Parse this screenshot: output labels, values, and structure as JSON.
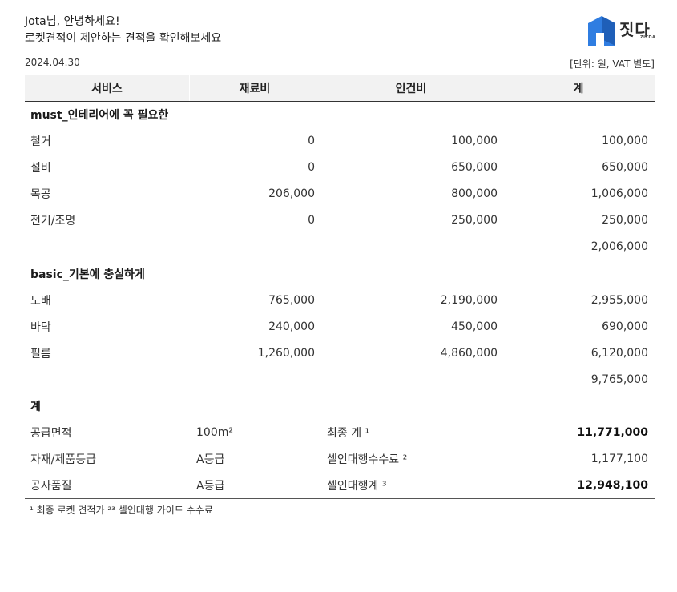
{
  "greeting": {
    "line1": "Jota님, 안녕하세요!",
    "line2": "로켓견적이 제안하는 견적을 확인해보세요"
  },
  "brand": {
    "logo_text": "짓다",
    "logo_sub": "ZITDA",
    "logo_color": "#2f7de1"
  },
  "meta": {
    "date": "2024.04.30",
    "unit_note": "[단위: 원, VAT 별도]"
  },
  "table": {
    "headers": [
      "서비스",
      "재료비",
      "인건비",
      "계"
    ],
    "sections": [
      {
        "title": "must_인테리어에 꼭 필요한",
        "rows": [
          {
            "name": "철거",
            "material": "0",
            "labor": "100,000",
            "total": "100,000"
          },
          {
            "name": "설비",
            "material": "0",
            "labor": "650,000",
            "total": "650,000"
          },
          {
            "name": "목공",
            "material": "206,000",
            "labor": "800,000",
            "total": "1,006,000"
          },
          {
            "name": "전기/조명",
            "material": "0",
            "labor": "250,000",
            "total": "250,000"
          }
        ],
        "subtotal": "2,006,000"
      },
      {
        "title": "basic_기본에 충실하게",
        "rows": [
          {
            "name": "도배",
            "material": "765,000",
            "labor": "2,190,000",
            "total": "2,955,000"
          },
          {
            "name": "바닥",
            "material": "240,000",
            "labor": "450,000",
            "total": "690,000"
          },
          {
            "name": "필름",
            "material": "1,260,000",
            "labor": "4,860,000",
            "total": "6,120,000"
          }
        ],
        "subtotal": "9,765,000"
      }
    ]
  },
  "summary": {
    "title": "계",
    "rows": [
      {
        "label": "공급면적",
        "value": "100m²",
        "label2": "최종 계 ¹",
        "amount": "11,771,000",
        "bold": true
      },
      {
        "label": "자재/제품등급",
        "value": "A등급",
        "label2": "셀인대행수수료 ²",
        "amount": "1,177,100",
        "bold": false
      },
      {
        "label": "공사품질",
        "value": "A등급",
        "label2": "셀인대행계 ³",
        "amount": "12,948,100",
        "bold": true
      }
    ]
  },
  "footnote": "¹ 최종 로켓 견적가  ²³ 셀인대행 가이드 수수료"
}
